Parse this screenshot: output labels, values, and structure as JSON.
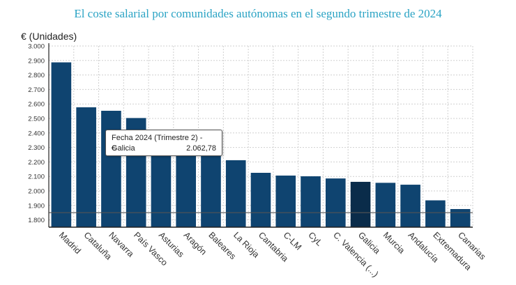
{
  "chart_data": {
    "type": "bar",
    "title": "El coste salarial por comunidades autónomas en el segundo trimestre de 2024",
    "ylabel": "€ (Unidades)",
    "xlabel": "",
    "categories": [
      "Madrid",
      "Cataluña",
      "Navarra",
      "País Vasco",
      "Asturias",
      "Aragón",
      "Baleares",
      "La Rioja",
      "Cantabria",
      "C-LM",
      "CyL",
      "C. Valencia (...)",
      "Galicia",
      "Murcia",
      "Andalucía",
      "Extremadura",
      "Canarias"
    ],
    "values": [
      2887,
      2577,
      2553,
      2503,
      2330,
      2298,
      2255,
      2212,
      2125,
      2106,
      2101,
      2086,
      2062.78,
      2056,
      2043,
      1935,
      1875
    ],
    "ylim": [
      1750,
      3000
    ],
    "yticks": [
      "1.800",
      "1.900",
      "2.000",
      "2.100",
      "2.200",
      "2.300",
      "2.400",
      "2.500",
      "2.600",
      "2.700",
      "2.800",
      "2.900",
      "3.000"
    ],
    "ytick_values": [
      1800,
      1900,
      2000,
      2100,
      2200,
      2300,
      2400,
      2500,
      2600,
      2700,
      2800,
      2900,
      3000
    ],
    "reference_line": 1850,
    "highlighted_category": "Galicia",
    "grid": true,
    "colors": {
      "bar": "#0f4470",
      "bar_highlight": "#0a2c4a",
      "grid": "#cfcfcf",
      "reference": "#555555"
    }
  },
  "tooltip": {
    "line1": "Fecha  2024 (Trimestre 2) - Galicia",
    "unit": "€",
    "value": "2.062,78"
  }
}
